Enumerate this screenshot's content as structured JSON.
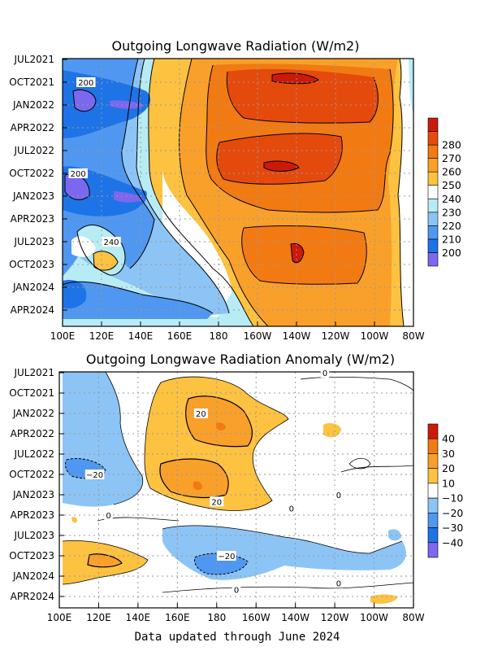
{
  "chart_data": [
    {
      "type": "heatmap",
      "title": "Outgoing Longwave Radiation (W/m2)",
      "x_ticks": [
        "100E",
        "120E",
        "140E",
        "160E",
        "180",
        "160W",
        "140W",
        "120W",
        "100W",
        "80W"
      ],
      "y_ticks": [
        "JUL2021",
        "OCT2021",
        "JAN2022",
        "APR2022",
        "JUL2022",
        "OCT2022",
        "JAN2023",
        "APR2023",
        "JUL2023",
        "OCT2023",
        "JAN2024",
        "APR2024"
      ],
      "colorbar": {
        "levels": [
          "200",
          "210",
          "220",
          "230",
          "240",
          "250",
          "260",
          "270",
          "280"
        ],
        "colors": [
          "#7b68ee",
          "#1e73e6",
          "#4f97f0",
          "#8cc4f5",
          "#b8ecf5",
          "#ffffff",
          "#fec241",
          "#f9a02a",
          "#f27a12",
          "#e44a0c",
          "#cc1a08"
        ]
      },
      "contour_labels": [
        {
          "text": "200",
          "lon": 112,
          "date": "2021-10"
        },
        {
          "text": "200",
          "lon": 108,
          "date": "2022-10"
        },
        {
          "text": "240",
          "lon": 125,
          "date": "2023-07"
        }
      ]
    },
    {
      "type": "heatmap",
      "title": "Outgoing Longwave Radiation Anomaly (W/m2)",
      "x_ticks": [
        "100E",
        "120E",
        "140E",
        "160E",
        "180",
        "160W",
        "140W",
        "120W",
        "100W",
        "80W"
      ],
      "y_ticks": [
        "JUL2021",
        "OCT2021",
        "JAN2022",
        "APR2022",
        "JUL2022",
        "OCT2022",
        "JAN2023",
        "APR2023",
        "JUL2023",
        "OCT2023",
        "JAN2024",
        "APR2024"
      ],
      "colorbar": {
        "levels": [
          "40",
          "30",
          "20",
          "10",
          "−10",
          "−20",
          "−30",
          "−40"
        ],
        "colors": [
          "#cc1a08",
          "#f27a12",
          "#f9a02a",
          "#fec241",
          "#ffffff",
          "#8cc4f5",
          "#4f97f0",
          "#1e73e6",
          "#7b68ee"
        ]
      },
      "contour_labels": [
        {
          "text": "20",
          "lon": 172,
          "date": "2022-01"
        },
        {
          "text": "−20",
          "lon": 118,
          "date": "2022-10"
        },
        {
          "text": "20",
          "lon": 180,
          "date": "2023-02"
        },
        {
          "text": "−20",
          "lon": 185,
          "date": "2023-10"
        },
        {
          "text": "0",
          "lon": 235,
          "date": "2021-07"
        },
        {
          "text": "0",
          "lon": 242,
          "date": "2023-01"
        },
        {
          "text": "0",
          "lon": 218,
          "date": "2023-03"
        },
        {
          "text": "0",
          "lon": 125,
          "date": "2023-04"
        },
        {
          "text": "0",
          "lon": 190,
          "date": "2024-03"
        },
        {
          "text": "0",
          "lon": 242,
          "date": "2024-02"
        }
      ]
    }
  ],
  "footer": "Data updated through June 2024"
}
